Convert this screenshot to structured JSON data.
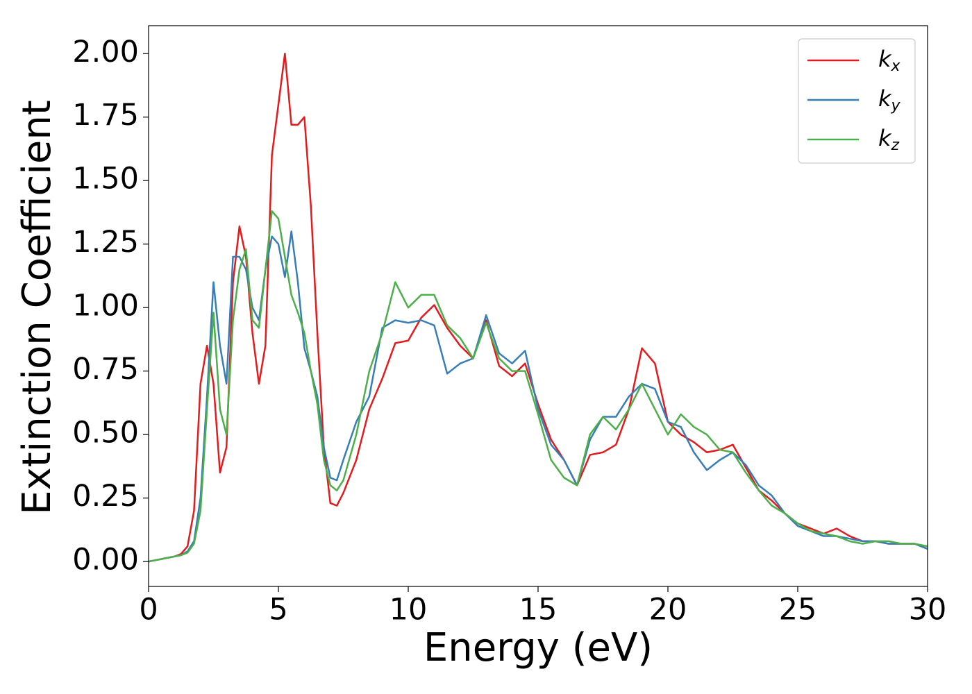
{
  "chart_data": {
    "type": "line",
    "xlabel": "Energy (eV)",
    "ylabel": "Extinction Coefficient",
    "xlim": [
      0,
      30
    ],
    "ylim": [
      -0.098,
      2.11
    ],
    "xticks": [
      0,
      5,
      10,
      15,
      20,
      25,
      30
    ],
    "yticks": [
      {
        "value": 0,
        "label": "0.00"
      },
      {
        "value": 0.25,
        "label": "0.25"
      },
      {
        "value": 0.5,
        "label": "0.50"
      },
      {
        "value": 0.75,
        "label": "0.75"
      },
      {
        "value": 1,
        "label": "1.00"
      },
      {
        "value": 1.25,
        "label": "1.25"
      },
      {
        "value": 1.5,
        "label": "1.50"
      },
      {
        "value": 1.75,
        "label": "1.75"
      },
      {
        "value": 2,
        "label": "2.00"
      }
    ],
    "grid": false,
    "legend": "upper right",
    "x": [
      0,
      0.25,
      0.5,
      0.75,
      1,
      1.25,
      1.5,
      1.75,
      2,
      2.25,
      2.5,
      2.75,
      3,
      3.25,
      3.5,
      3.75,
      4,
      4.25,
      4.5,
      4.75,
      5,
      5.25,
      5.5,
      5.75,
      6,
      6.25,
      6.5,
      6.75,
      7,
      7.25,
      7.5,
      8,
      8.5,
      9,
      9.5,
      10,
      10.5,
      11,
      11.5,
      12,
      12.5,
      13,
      13.5,
      14,
      14.5,
      15,
      15.5,
      16,
      16.5,
      17,
      17.5,
      18,
      18.5,
      19,
      19.5,
      20,
      20.5,
      21,
      21.5,
      22,
      22.5,
      23,
      23.5,
      24,
      24.5,
      25,
      25.5,
      26,
      26.5,
      27,
      27.5,
      28,
      28.5,
      29,
      29.5,
      30
    ],
    "series": [
      {
        "name": "kx",
        "color": "#e41a1c",
        "values": [
          0,
          0.005,
          0.01,
          0.015,
          0.02,
          0.03,
          0.06,
          0.2,
          0.7,
          0.85,
          0.7,
          0.35,
          0.45,
          1.1,
          1.32,
          1.2,
          0.9,
          0.7,
          0.85,
          1.6,
          1.8,
          2.0,
          1.72,
          1.72,
          1.75,
          1.4,
          0.9,
          0.45,
          0.23,
          0.22,
          0.27,
          0.4,
          0.6,
          0.72,
          0.86,
          0.87,
          0.96,
          1.01,
          0.92,
          0.85,
          0.8,
          0.95,
          0.77,
          0.73,
          0.78,
          0.62,
          0.48,
          0.4,
          0.3,
          0.42,
          0.43,
          0.46,
          0.6,
          0.84,
          0.78,
          0.55,
          0.5,
          0.47,
          0.43,
          0.44,
          0.46,
          0.37,
          0.28,
          0.24,
          0.19,
          0.15,
          0.13,
          0.11,
          0.13,
          0.1,
          0.08,
          0.08,
          0.07,
          0.07,
          0.07,
          0.05
        ]
      },
      {
        "name": "ky",
        "color": "#377eb8",
        "values": [
          0,
          0.005,
          0.01,
          0.015,
          0.02,
          0.025,
          0.04,
          0.08,
          0.25,
          0.65,
          1.1,
          0.85,
          0.7,
          1.2,
          1.2,
          1.15,
          1.0,
          0.95,
          1.15,
          1.28,
          1.25,
          1.12,
          1.3,
          1.1,
          0.84,
          0.75,
          0.65,
          0.45,
          0.33,
          0.32,
          0.4,
          0.55,
          0.65,
          0.92,
          0.95,
          0.94,
          0.95,
          0.93,
          0.74,
          0.78,
          0.8,
          0.97,
          0.82,
          0.78,
          0.83,
          0.6,
          0.46,
          0.4,
          0.3,
          0.48,
          0.57,
          0.57,
          0.65,
          0.7,
          0.68,
          0.55,
          0.53,
          0.43,
          0.36,
          0.4,
          0.43,
          0.38,
          0.3,
          0.26,
          0.19,
          0.14,
          0.12,
          0.1,
          0.1,
          0.09,
          0.08,
          0.08,
          0.07,
          0.07,
          0.07,
          0.05
        ]
      },
      {
        "name": "kz",
        "color": "#4daf4a",
        "values": [
          0,
          0.005,
          0.01,
          0.015,
          0.02,
          0.025,
          0.035,
          0.07,
          0.2,
          0.6,
          0.98,
          0.6,
          0.5,
          0.95,
          1.15,
          1.23,
          0.95,
          0.92,
          1.15,
          1.38,
          1.35,
          1.2,
          1.05,
          0.98,
          0.9,
          0.75,
          0.62,
          0.4,
          0.3,
          0.28,
          0.32,
          0.5,
          0.75,
          0.9,
          1.1,
          1.0,
          1.05,
          1.05,
          0.93,
          0.88,
          0.8,
          0.94,
          0.8,
          0.75,
          0.75,
          0.58,
          0.4,
          0.33,
          0.3,
          0.5,
          0.57,
          0.52,
          0.6,
          0.7,
          0.6,
          0.5,
          0.58,
          0.53,
          0.5,
          0.44,
          0.43,
          0.35,
          0.28,
          0.22,
          0.19,
          0.15,
          0.12,
          0.11,
          0.1,
          0.08,
          0.07,
          0.08,
          0.08,
          0.07,
          0.07,
          0.06
        ]
      }
    ]
  }
}
